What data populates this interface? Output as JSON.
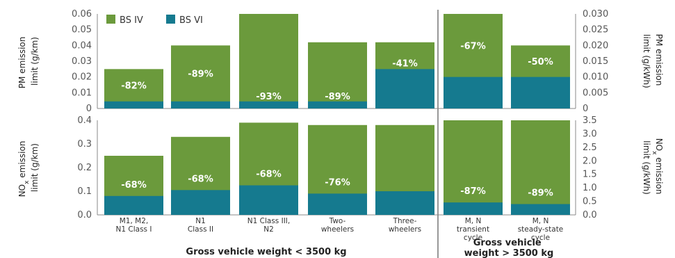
{
  "chart_data": [
    {
      "type": "bar",
      "stacking": "overlay",
      "categories": [
        "M1, M2, N1 Class I",
        "N1 Class II",
        "N1 Class III, N2",
        "Two-wheelers",
        "Three-wheelers",
        "M, N transient cycle",
        "M, N steady-state cycle"
      ],
      "series": [
        {
          "name": "BS IV",
          "values": [
            0.025,
            0.04,
            0.06,
            0.042,
            0.042,
            0.03,
            0.02
          ]
        },
        {
          "name": "BS VI",
          "values": [
            0.0045,
            0.0045,
            0.0045,
            0.0045,
            0.025,
            0.01,
            0.01
          ]
        }
      ],
      "reduction_labels": [
        "-82%",
        "-89%",
        "-93%",
        "-89%",
        "-41%",
        "-67%",
        "-50%"
      ],
      "ylabel": "PM emission limit (g/km)",
      "ylim": [
        0,
        0.06
      ],
      "yticks": [
        "0",
        "0.01",
        "0.02",
        "0.03",
        "0.04",
        "0.05",
        "0.06"
      ],
      "ylabel_right": "PM emission limit (g/kWh)",
      "ylim_right": [
        0,
        0.03
      ],
      "yticks_right": [
        "0",
        "0.005",
        "0.010",
        "0.015",
        "0.020",
        "0.025",
        "0.030"
      ],
      "right_axis_categories": [
        "M, N transient cycle",
        "M, N steady-state cycle"
      ],
      "grid": false,
      "legend": "top-left"
    },
    {
      "type": "bar",
      "stacking": "overlay",
      "categories": [
        "M1, M2, N1 Class I",
        "N1 Class II",
        "N1 Class III, N2",
        "Two-wheelers",
        "Three-wheelers",
        "M, N transient cycle",
        "M, N steady-state cycle"
      ],
      "series": [
        {
          "name": "BS IV",
          "values": [
            0.25,
            0.33,
            0.39,
            0.38,
            0.38,
            3.5,
            3.5
          ]
        },
        {
          "name": "BS VI",
          "values": [
            0.08,
            0.105,
            0.125,
            0.09,
            0.1,
            0.46,
            0.4
          ]
        }
      ],
      "reduction_labels": [
        "-68%",
        "-68%",
        "-68%",
        "-76%",
        "",
        "-87%",
        "-89%"
      ],
      "ylabel": "NOx emission limit (g/km)",
      "ylim": [
        0,
        0.4
      ],
      "yticks": [
        "0.0",
        "0.1",
        "0.2",
        "0.3",
        "0.4"
      ],
      "ylabel_right": "NOx emission limit (g/kWh)",
      "ylim_right": [
        0,
        3.5
      ],
      "yticks_right": [
        "0.0",
        "0.5",
        "1.0",
        "1.5",
        "2.0",
        "2.5",
        "3.0",
        "3.5"
      ],
      "right_axis_categories": [
        "M, N transient cycle",
        "M, N steady-state cycle"
      ],
      "grid": false
    }
  ],
  "category_labels": [
    [
      "M1, M2,",
      "N1 Class I"
    ],
    [
      "N1",
      "Class II"
    ],
    [
      "N1 Class III,",
      "N2"
    ],
    [
      "Two-",
      "wheelers"
    ],
    [
      "Three-",
      "wheelers"
    ],
    [
      "M, N",
      "transient",
      "cycle"
    ],
    [
      "M, N",
      "steady-state",
      "cycle"
    ]
  ],
  "group_labels": {
    "light": "Gross vehicle weight < 3500 kg",
    "heavy": [
      "Gross vehicle",
      "weight > 3500 kg"
    ]
  },
  "axis_title_parts": {
    "pm_left": [
      "PM emission",
      "limit (g/km)"
    ],
    "pm_right": [
      "PM emission",
      "limit (g/kWh)"
    ],
    "nox_left": [
      "NO",
      "x",
      " emission",
      "limit (g/km)"
    ],
    "nox_right": [
      "NO",
      "x",
      " emission",
      "limit (g/kWh)"
    ]
  },
  "colors": {
    "bs_iv": "#6b9a3c",
    "bs_vi": "#157a8f",
    "axis": "#888888",
    "divider": "#777777"
  }
}
